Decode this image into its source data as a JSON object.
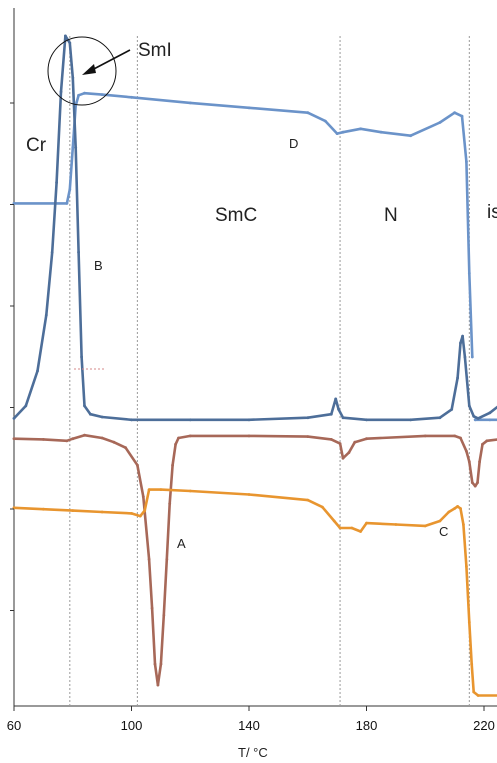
{
  "chart_data": {
    "type": "line",
    "title": "",
    "xlabel": "T/ °C",
    "ylabel": "",
    "xlim": [
      60,
      225
    ],
    "x_ticks": [
      60,
      100,
      140,
      180,
      220
    ],
    "y_ticks_count": 7,
    "grid": false,
    "phase_labels": [
      "Cr",
      "SmI",
      "SmC",
      "N",
      "is"
    ],
    "point_labels": [
      "A",
      "B",
      "C",
      "D"
    ],
    "transition_lines_x": [
      79,
      102,
      171,
      215
    ],
    "colors": {
      "blue": "#6b93c9",
      "slate": "#4d6e99",
      "brown": "#a76858",
      "orange": "#e8952f",
      "guide": "#9a9a9a"
    },
    "series": [
      {
        "color": "#6b93c9",
        "x": [
          60,
          78,
          79,
          80,
          81,
          82,
          84,
          90,
          100,
          120,
          140,
          160,
          166,
          170,
          172,
          178,
          185,
          195,
          205,
          210,
          212.5,
          214,
          215,
          216
        ],
        "y": [
          0.72,
          0.72,
          0.74,
          0.8,
          0.86,
          0.875,
          0.878,
          0.876,
          0.872,
          0.864,
          0.857,
          0.85,
          0.838,
          0.82,
          0.822,
          0.827,
          0.822,
          0.817,
          0.836,
          0.85,
          0.845,
          0.78,
          0.62,
          0.5
        ]
      },
      {
        "color": "#6b93c9",
        "x": [
          217,
          222,
          225
        ],
        "y": [
          0.41,
          0.41,
          0.41
        ]
      },
      {
        "color": "#4d6e99",
        "x": [
          60,
          64,
          68,
          71,
          73,
          74.5,
          76,
          77.5,
          79,
          80,
          81,
          82,
          83,
          84,
          86,
          90,
          100,
          120,
          140,
          160,
          168,
          169.5,
          170.5,
          172,
          180,
          195,
          205,
          209,
          211,
          212,
          212.7,
          213.5,
          215,
          216.5,
          218,
          222,
          225
        ],
        "y": [
          0.412,
          0.43,
          0.48,
          0.56,
          0.65,
          0.75,
          0.88,
          0.96,
          0.95,
          0.9,
          0.8,
          0.65,
          0.5,
          0.43,
          0.418,
          0.414,
          0.41,
          0.41,
          0.41,
          0.413,
          0.418,
          0.44,
          0.425,
          0.413,
          0.41,
          0.41,
          0.413,
          0.425,
          0.47,
          0.52,
          0.53,
          0.5,
          0.43,
          0.415,
          0.412,
          0.42,
          0.43
        ]
      },
      {
        "color": "#a76858",
        "x": [
          60,
          70,
          78,
          80,
          84,
          90,
          94,
          98,
          102,
          104,
          106,
          107,
          108,
          109,
          110,
          111,
          112,
          113,
          114,
          115,
          116,
          120,
          140,
          160,
          168,
          171,
          172,
          174,
          176,
          180,
          200,
          210,
          212,
          214,
          215,
          216,
          217,
          217.8,
          218.5,
          219.5,
          221,
          225
        ],
        "y": [
          0.383,
          0.382,
          0.38,
          0.383,
          0.388,
          0.384,
          0.378,
          0.37,
          0.345,
          0.3,
          0.21,
          0.14,
          0.06,
          0.03,
          0.06,
          0.13,
          0.21,
          0.29,
          0.345,
          0.375,
          0.384,
          0.387,
          0.387,
          0.386,
          0.382,
          0.376,
          0.355,
          0.363,
          0.378,
          0.383,
          0.387,
          0.387,
          0.384,
          0.365,
          0.35,
          0.32,
          0.315,
          0.32,
          0.35,
          0.375,
          0.38,
          0.382
        ]
      },
      {
        "color": "#e8952f",
        "x": [
          60,
          70,
          80,
          90,
          100,
          103,
          104.5,
          106,
          110,
          120,
          140,
          160,
          165,
          169,
          171,
          175,
          178,
          180,
          190,
          200,
          205,
          208,
          210,
          211,
          212,
          213,
          214,
          215,
          215.8,
          216.5,
          218,
          225
        ],
        "y": [
          0.284,
          0.282,
          0.28,
          0.278,
          0.276,
          0.272,
          0.28,
          0.31,
          0.31,
          0.308,
          0.303,
          0.295,
          0.285,
          0.265,
          0.255,
          0.255,
          0.25,
          0.262,
          0.26,
          0.258,
          0.265,
          0.278,
          0.283,
          0.286,
          0.283,
          0.26,
          0.2,
          0.12,
          0.06,
          0.02,
          0.015,
          0.015
        ]
      }
    ]
  },
  "labels": {
    "cr": "Cr",
    "smi": "SmI",
    "smc": "SmC",
    "n": "N",
    "is": "is",
    "a": "A",
    "b": "B",
    "c": "C",
    "d": "D",
    "xlabel": "T/ °C"
  }
}
